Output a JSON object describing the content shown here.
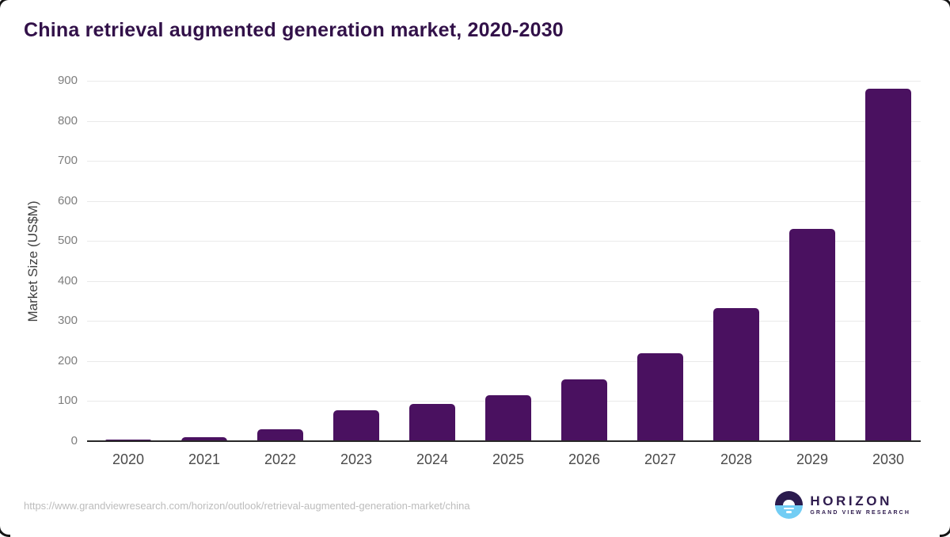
{
  "header": {
    "title": "China retrieval augmented generation market, 2020-2030"
  },
  "chart_data": {
    "type": "bar",
    "title": "China retrieval augmented generation market, 2020-2030",
    "categories": [
      "2020",
      "2021",
      "2022",
      "2023",
      "2024",
      "2025",
      "2026",
      "2027",
      "2028",
      "2029",
      "2030"
    ],
    "values": [
      4,
      10,
      29,
      78,
      92,
      115,
      154,
      220,
      332,
      531,
      880
    ],
    "xlabel": "",
    "ylabel": "Market Size (US$M)",
    "ylim": [
      0,
      900
    ],
    "ytick_step": 100,
    "yticks": [
      0,
      100,
      200,
      300,
      400,
      500,
      600,
      700,
      800,
      900
    ],
    "grid": true,
    "legend": "none",
    "bar_color": "#4A1160"
  },
  "colors": {
    "bar": "#4A1160",
    "title_text": "#321149",
    "axis_line": "#282828",
    "gridline": "#EAEAEA",
    "ytick_label": "#7E7E7E",
    "xtick_label": "#4A4A4A",
    "url_text": "#BCBCBC",
    "logo_dark": "#2B1B4E",
    "logo_blue": "#72CDF4",
    "logo_text": "#2F1C4E"
  },
  "footer": {
    "source_url": "https://www.grandviewresearch.com/horizon/outlook/retrieval-augmented-generation-market/china",
    "logo": {
      "brand": "HORIZON",
      "subbrand": "GRAND VIEW RESEARCH"
    }
  }
}
